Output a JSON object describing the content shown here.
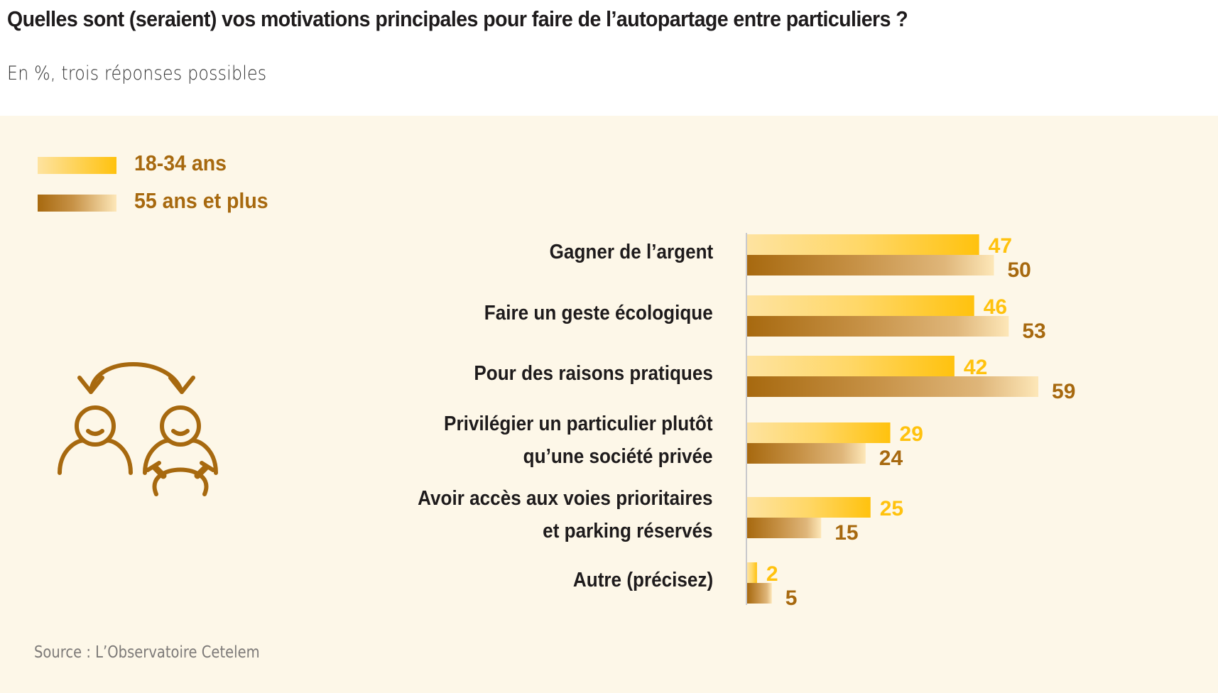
{
  "header": {
    "title": "Quelles sont (seraient) vos motivations principales pour faire de l’autopartage entre particuliers ?",
    "subtitle": "En %, trois réponses possibles"
  },
  "legend": [
    {
      "label": "18-34 ans",
      "color_start": "#fee3a0",
      "color_end": "#ffc20e",
      "text_color": "#a7690f"
    },
    {
      "label": "55 ans et plus",
      "color_start": "#a7690f",
      "color_end": "#fde7b8",
      "text_color": "#a7690f"
    }
  ],
  "illustration": {
    "icon": "two-people-exchange-icon",
    "color": "#a7690f"
  },
  "source": "Source : L’Observatoire Cetelem",
  "chart_data": {
    "type": "bar",
    "orientation": "horizontal",
    "title": "Quelles sont (seraient) vos motivations principales pour faire de l’autopartage entre particuliers ?",
    "subtitle": "En %, trois réponses possibles",
    "xlabel": "",
    "ylabel": "",
    "unit": "%",
    "grid": false,
    "legend_position": "top-left",
    "categories": [
      [
        "Gagner de l’argent"
      ],
      [
        "Faire un geste écologique"
      ],
      [
        "Pour des raisons pratiques"
      ],
      [
        "Privilégier un particulier plutôt",
        "qu’une société privée"
      ],
      [
        "Avoir accès aux voies prioritaires",
        "et parking réservés"
      ],
      [
        "Autre (précisez)"
      ]
    ],
    "series": [
      {
        "name": "18-34 ans",
        "values": [
          47,
          46,
          42,
          29,
          25,
          2
        ],
        "label_color": "#ffc20e"
      },
      {
        "name": "55 ans et plus",
        "values": [
          50,
          53,
          59,
          24,
          15,
          5
        ],
        "label_color": "#a7690f"
      }
    ],
    "xlim": [
      0,
      65
    ]
  }
}
